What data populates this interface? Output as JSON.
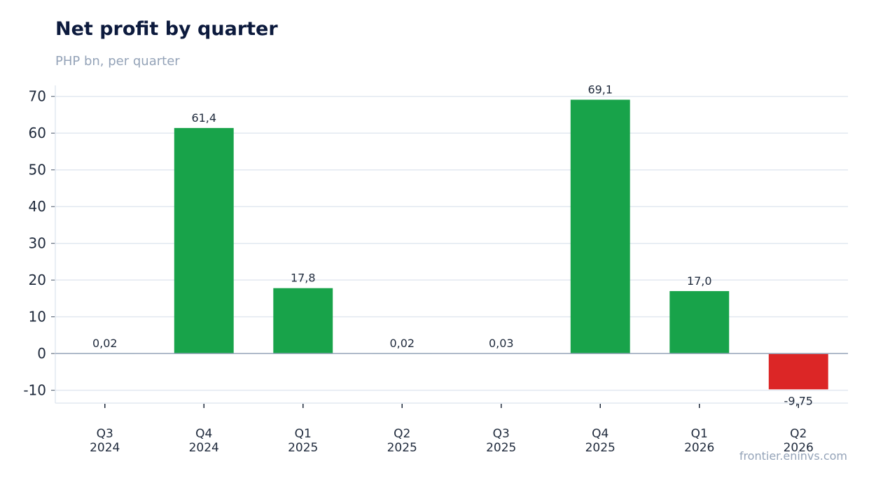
{
  "header": {
    "title": "Net profit by quarter",
    "subtitle": "PHP bn, per quarter"
  },
  "footer": {
    "source": "frontier.eninvs.com"
  },
  "colors": {
    "positive": "#18a34a",
    "negative": "#dc2626",
    "grid": "#e2e8f0",
    "zero_line": "#94a3b8"
  },
  "chart_data": {
    "type": "bar",
    "categories": [
      [
        "Q3",
        "2024"
      ],
      [
        "Q4",
        "2024"
      ],
      [
        "Q1",
        "2025"
      ],
      [
        "Q2",
        "2025"
      ],
      [
        "Q3",
        "2025"
      ],
      [
        "Q4",
        "2025"
      ],
      [
        "Q1",
        "2026"
      ],
      [
        "Q2",
        "2026"
      ]
    ],
    "values": [
      0.02,
      61.4,
      17.8,
      0.02,
      0.03,
      69.1,
      17.0,
      -9.75
    ],
    "labels": [
      "0,02",
      "61,4",
      "17,8",
      "0,02",
      "0,03",
      "69,1",
      "17,0",
      "-9,75"
    ],
    "title": "Net profit by quarter",
    "ylabel": "",
    "xlabel": "",
    "ylim": [
      -13.5,
      73
    ],
    "yticks": [
      -10,
      0,
      10,
      20,
      30,
      40,
      50,
      60,
      70
    ],
    "ytick_labels": [
      "-10",
      "0",
      "10",
      "20",
      "30",
      "40",
      "50",
      "60",
      "70"
    ],
    "grid": true,
    "legend": "none"
  }
}
